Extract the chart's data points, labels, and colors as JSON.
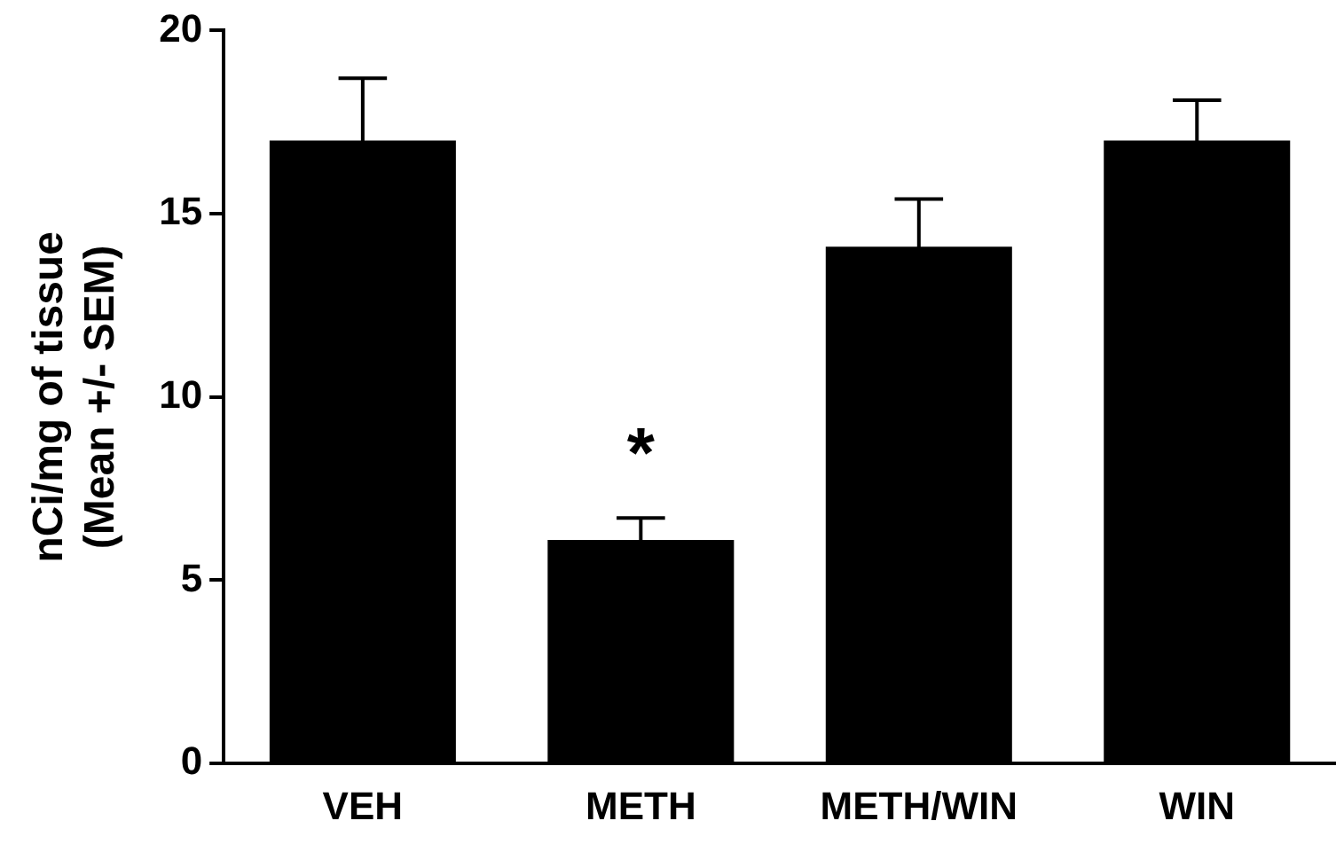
{
  "chart_data": {
    "type": "bar",
    "ylabel": "nCi/mg of tissue\n(Mean +/- SEM)",
    "categories": [
      "VEH",
      "METH",
      "METH/WIN",
      "WIN"
    ],
    "values": [
      17.0,
      6.1,
      14.1,
      17.0
    ],
    "errors": [
      1.7,
      0.6,
      1.3,
      1.1
    ],
    "color": "#000000",
    "ylim": [
      0,
      20
    ],
    "yticks": [
      0,
      5,
      10,
      15,
      20
    ],
    "grid": false,
    "legend": false,
    "annotations": [
      "*"
    ]
  }
}
